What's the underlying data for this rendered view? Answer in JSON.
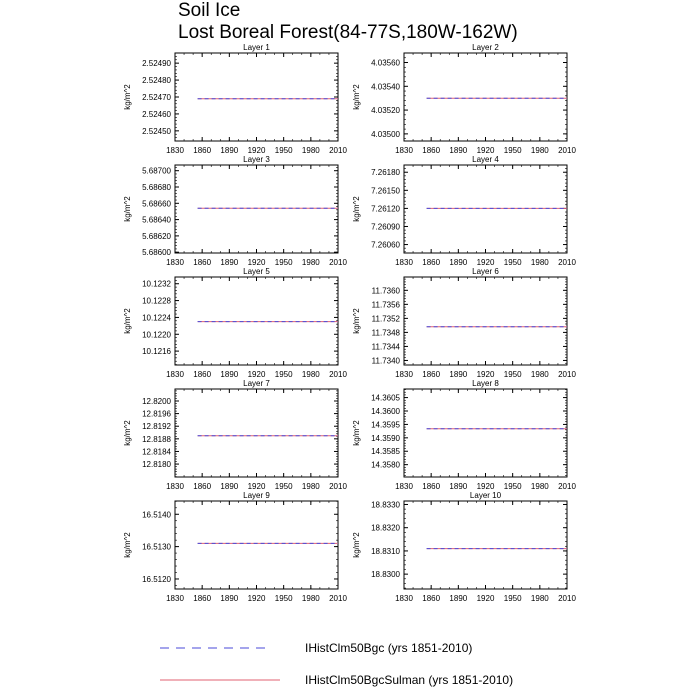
{
  "title": "Soil Ice",
  "subtitle": "Lost Boreal Forest(84-77S,180W-162W)",
  "colors": {
    "series1": "#4a4ad8",
    "series2": "#e06070",
    "frame": "#000000"
  },
  "chart_data": [
    {
      "type": "line",
      "title": "Layer 1",
      "ylabel": "kg/m^2",
      "xlim": [
        1830,
        2010
      ],
      "ylim": [
        2.52444,
        2.52496
      ],
      "x_ticks": [
        "1830",
        "1860",
        "1890",
        "1920",
        "1950",
        "1980",
        "2010"
      ],
      "y_ticks": [
        "2.52450",
        "2.52460",
        "2.52470",
        "2.52480",
        "2.52490"
      ],
      "series": [
        {
          "name": "IHistClm50Bgc (yrs 1851-2010)",
          "x": [
            1855,
            2010
          ],
          "y": [
            2.52469,
            2.52469
          ]
        },
        {
          "name": "IHistClm50BgcSulman (yrs 1851-2010)",
          "x": [
            1855,
            2010
          ],
          "y": [
            2.52469,
            2.52469
          ]
        }
      ]
    },
    {
      "type": "line",
      "title": "Layer 2",
      "ylabel": "kg/m^2",
      "xlim": [
        1830,
        2010
      ],
      "ylim": [
        4.03494,
        4.03568
      ],
      "x_ticks": [
        "1830",
        "1860",
        "1890",
        "1920",
        "1950",
        "1980",
        "2010"
      ],
      "y_ticks": [
        "4.03500",
        "4.03520",
        "4.03540",
        "4.03560"
      ],
      "series": [
        {
          "name": "IHistClm50Bgc (yrs 1851-2010)",
          "x": [
            1855,
            2010
          ],
          "y": [
            4.0353,
            4.0353
          ]
        },
        {
          "name": "IHistClm50BgcSulman (yrs 1851-2010)",
          "x": [
            1855,
            2010
          ],
          "y": [
            4.0353,
            4.0353
          ]
        }
      ]
    },
    {
      "type": "line",
      "title": "Layer 3",
      "ylabel": "kg/m^2",
      "xlim": [
        1830,
        2010
      ],
      "ylim": [
        5.68599,
        5.68707
      ],
      "x_ticks": [
        "1830",
        "1860",
        "1890",
        "1920",
        "1950",
        "1980",
        "2010"
      ],
      "y_ticks": [
        "5.68600",
        "5.68620",
        "5.68640",
        "5.68660",
        "5.68680",
        "5.68700"
      ],
      "series": [
        {
          "name": "IHistClm50Bgc (yrs 1851-2010)",
          "x": [
            1855,
            2010
          ],
          "y": [
            5.68654,
            5.68654
          ]
        },
        {
          "name": "IHistClm50BgcSulman (yrs 1851-2010)",
          "x": [
            1855,
            2010
          ],
          "y": [
            5.68654,
            5.68654
          ]
        }
      ]
    },
    {
      "type": "line",
      "title": "Layer 4",
      "ylabel": "kg/m^2",
      "xlim": [
        1830,
        2010
      ],
      "ylim": [
        7.26046,
        7.26192
      ],
      "x_ticks": [
        "1830",
        "1860",
        "1890",
        "1920",
        "1950",
        "1980",
        "2010"
      ],
      "y_ticks": [
        "7.26060",
        "7.26090",
        "7.26120",
        "7.26150",
        "7.26180"
      ],
      "series": [
        {
          "name": "IHistClm50Bgc (yrs 1851-2010)",
          "x": [
            1855,
            2010
          ],
          "y": [
            7.2612,
            7.2612
          ]
        },
        {
          "name": "IHistClm50BgcSulman (yrs 1851-2010)",
          "x": [
            1855,
            2010
          ],
          "y": [
            7.2612,
            7.2612
          ]
        }
      ]
    },
    {
      "type": "line",
      "title": "Layer 5",
      "ylabel": "kg/m^2",
      "xlim": [
        1830,
        2010
      ],
      "ylim": [
        10.12127,
        10.12336
      ],
      "x_ticks": [
        "1830",
        "1860",
        "1890",
        "1920",
        "1950",
        "1980",
        "2010"
      ],
      "y_ticks": [
        "10.1216",
        "10.1220",
        "10.1224",
        "10.1228",
        "10.1232"
      ],
      "series": [
        {
          "name": "IHistClm50Bgc (yrs 1851-2010)",
          "x": [
            1855,
            2010
          ],
          "y": [
            10.1223,
            10.1223
          ]
        },
        {
          "name": "IHistClm50BgcSulman (yrs 1851-2010)",
          "x": [
            1855,
            2010
          ],
          "y": [
            10.1223,
            10.1223
          ]
        }
      ]
    },
    {
      "type": "line",
      "title": "Layer 6",
      "ylabel": "kg/m^2",
      "xlim": [
        1830,
        2010
      ],
      "ylim": [
        11.73387,
        11.73638
      ],
      "x_ticks": [
        "1830",
        "1860",
        "1890",
        "1920",
        "1950",
        "1980",
        "2010"
      ],
      "y_ticks": [
        "11.7340",
        "11.7344",
        "11.7348",
        "11.7352",
        "11.7356",
        "11.7360"
      ],
      "series": [
        {
          "name": "IHistClm50Bgc (yrs 1851-2010)",
          "x": [
            1855,
            2010
          ],
          "y": [
            11.73496,
            11.73496
          ]
        },
        {
          "name": "IHistClm50BgcSulman (yrs 1851-2010)",
          "x": [
            1855,
            2010
          ],
          "y": [
            11.73496,
            11.73496
          ]
        }
      ]
    },
    {
      "type": "line",
      "title": "Layer 7",
      "ylabel": "kg/m^2",
      "xlim": [
        1830,
        2010
      ],
      "ylim": [
        12.81759,
        12.82038
      ],
      "x_ticks": [
        "1830",
        "1860",
        "1890",
        "1920",
        "1950",
        "1980",
        "2010"
      ],
      "y_ticks": [
        "12.8180",
        "12.8184",
        "12.8188",
        "12.8192",
        "12.8196",
        "12.8200"
      ],
      "series": [
        {
          "name": "IHistClm50Bgc (yrs 1851-2010)",
          "x": [
            1855,
            2010
          ],
          "y": [
            12.8189,
            12.8189
          ]
        },
        {
          "name": "IHistClm50BgcSulman (yrs 1851-2010)",
          "x": [
            1855,
            2010
          ],
          "y": [
            12.8189,
            12.8189
          ]
        }
      ]
    },
    {
      "type": "line",
      "title": "Layer 8",
      "ylabel": "kg/m^2",
      "xlim": [
        1830,
        2010
      ],
      "ylim": [
        14.35754,
        14.36082
      ],
      "x_ticks": [
        "1830",
        "1860",
        "1890",
        "1920",
        "1950",
        "1980",
        "2010"
      ],
      "y_ticks": [
        "14.3580",
        "14.3585",
        "14.3590",
        "14.3595",
        "14.3600",
        "14.3605"
      ],
      "series": [
        {
          "name": "IHistClm50Bgc (yrs 1851-2010)",
          "x": [
            1855,
            2010
          ],
          "y": [
            14.35934,
            14.35934
          ]
        },
        {
          "name": "IHistClm50BgcSulman (yrs 1851-2010)",
          "x": [
            1855,
            2010
          ],
          "y": [
            14.35934,
            14.35934
          ]
        }
      ]
    },
    {
      "type": "line",
      "title": "Layer 9",
      "ylabel": "kg/m^2",
      "xlim": [
        1830,
        2010
      ],
      "ylim": [
        16.51169,
        16.51441
      ],
      "x_ticks": [
        "1830",
        "1860",
        "1890",
        "1920",
        "1950",
        "1980",
        "2010"
      ],
      "y_ticks": [
        "16.5120",
        "16.5130",
        "16.5140"
      ],
      "series": [
        {
          "name": "IHistClm50Bgc (yrs 1851-2010)",
          "x": [
            1855,
            2010
          ],
          "y": [
            16.5131,
            16.5131
          ]
        },
        {
          "name": "IHistClm50BgcSulman (yrs 1851-2010)",
          "x": [
            1855,
            2010
          ],
          "y": [
            16.5131,
            16.5131
          ]
        }
      ]
    },
    {
      "type": "line",
      "title": "Layer 10",
      "ylabel": "kg/m^2",
      "xlim": [
        1830,
        2010
      ],
      "ylim": [
        18.82936,
        18.83315
      ],
      "x_ticks": [
        "1830",
        "1860",
        "1890",
        "1920",
        "1950",
        "1980",
        "2010"
      ],
      "y_ticks": [
        "18.8300",
        "18.8310",
        "18.8320",
        "18.8330"
      ],
      "series": [
        {
          "name": "IHistClm50Bgc (yrs 1851-2010)",
          "x": [
            1855,
            2010
          ],
          "y": [
            18.8311,
            18.8311
          ]
        },
        {
          "name": "IHistClm50BgcSulman (yrs 1851-2010)",
          "x": [
            1855,
            2010
          ],
          "y": [
            18.8311,
            18.8311
          ]
        }
      ]
    }
  ],
  "legend": [
    {
      "label": "IHistClm50Bgc (yrs 1851-2010)",
      "style": "dashed",
      "color": "#4a4ad8"
    },
    {
      "label": "IHistClm50BgcSulman (yrs 1851-2010)",
      "style": "solid",
      "color": "#e06070"
    }
  ]
}
